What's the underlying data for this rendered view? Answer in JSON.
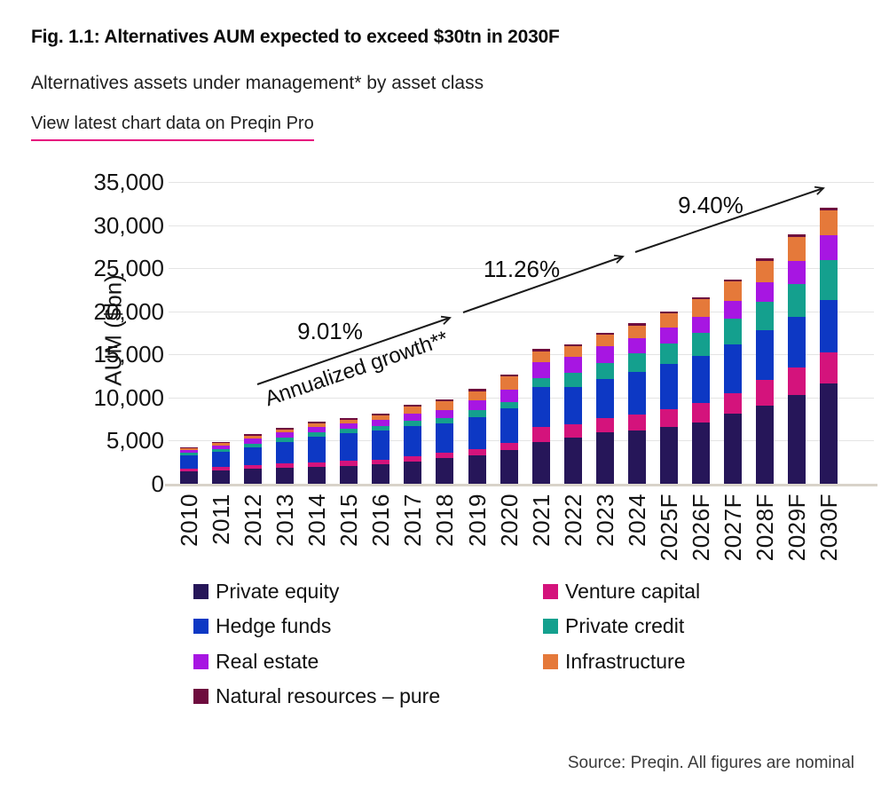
{
  "header": {
    "title": "Fig. 1.1: Alternatives AUM expected to exceed $30tn in 2030F",
    "subtitle": "Alternatives assets under management* by asset class",
    "link_label": "View latest chart data on Preqin Pro",
    "link_underline_color": "#e6067e"
  },
  "source_note": "Source: Preqin. All figures are nominal",
  "chart_data": {
    "type": "bar",
    "stacked": true,
    "ylabel": "AUM ($bn)",
    "xlabel": "",
    "ylim": [
      0,
      35000
    ],
    "ytick_interval": 5000,
    "ytick_labels": [
      "0",
      "5,000",
      "10,000",
      "15,000",
      "20,000",
      "25,000",
      "30,000",
      "35,000"
    ],
    "grid": "horizontal",
    "categories": [
      "2010",
      "2011",
      "2012",
      "2013",
      "2014",
      "2015",
      "2016",
      "2017",
      "2018",
      "2019",
      "2020",
      "2021",
      "2022",
      "2023",
      "2024",
      "2025F",
      "2026F",
      "2027F",
      "2028F",
      "2029F",
      "2030F"
    ],
    "series": [
      {
        "name": "Private equity",
        "color": "#261659",
        "values": [
          1400,
          1500,
          1700,
          1850,
          1950,
          2050,
          2250,
          2600,
          3000,
          3270,
          3900,
          4850,
          5350,
          5950,
          6150,
          6600,
          7150,
          8100,
          9100,
          10300,
          11650
        ]
      },
      {
        "name": "Venture capital",
        "color": "#d4137c",
        "values": [
          380,
          420,
          450,
          470,
          520,
          580,
          520,
          590,
          620,
          760,
          870,
          1700,
          1550,
          1700,
          1850,
          2000,
          2200,
          2350,
          2950,
          3150,
          3550
        ]
      },
      {
        "name": "Hedge funds",
        "color": "#0d38c4",
        "values": [
          1550,
          1750,
          2050,
          2550,
          2950,
          3250,
          3450,
          3500,
          3350,
          3720,
          3930,
          4650,
          4300,
          4450,
          4950,
          5250,
          5500,
          5750,
          5750,
          5950,
          6150
        ]
      },
      {
        "name": "Private credit",
        "color": "#14a08e",
        "values": [
          260,
          330,
          400,
          450,
          530,
          500,
          520,
          590,
          660,
          760,
          800,
          1050,
          1700,
          1950,
          2150,
          2400,
          2650,
          2900,
          3300,
          3800,
          4550
        ]
      },
      {
        "name": "Real estate",
        "color": "#a716e2",
        "values": [
          330,
          400,
          650,
          600,
          650,
          650,
          630,
          860,
          900,
          1140,
          1400,
          1850,
          1800,
          1900,
          1750,
          1850,
          1900,
          2100,
          2250,
          2650,
          2950
        ]
      },
      {
        "name": "Infrastructure",
        "color": "#e5793a",
        "values": [
          200,
          300,
          350,
          400,
          450,
          420,
          560,
          800,
          1000,
          1100,
          1530,
          1250,
          1250,
          1300,
          1500,
          1630,
          1970,
          2220,
          2470,
          2770,
          2870
        ]
      },
      {
        "name": "Natural resources – pure",
        "color": "#6e0c3e",
        "values": [
          80,
          100,
          150,
          180,
          200,
          200,
          220,
          260,
          270,
          250,
          270,
          250,
          250,
          250,
          250,
          270,
          280,
          280,
          280,
          280,
          280
        ]
      }
    ],
    "totals": [
      4200,
      4800,
      5750,
      6500,
      7250,
      7650,
      8150,
      9200,
      9800,
      11000,
      12700,
      15600,
      16200,
      17500,
      18600,
      20000,
      21650,
      23700,
      26100,
      28900,
      32000
    ],
    "annotations": {
      "growth_label": "Annualized growth**",
      "segments": [
        {
          "label": "9.01%"
        },
        {
          "label": "11.26%"
        },
        {
          "label": "9.40%"
        }
      ]
    },
    "legend": {
      "column1": [
        "Private equity",
        "Hedge funds",
        "Real estate",
        "Natural resources – pure"
      ],
      "column2": [
        "Venture capital",
        "Private credit",
        "Infrastructure"
      ]
    }
  }
}
